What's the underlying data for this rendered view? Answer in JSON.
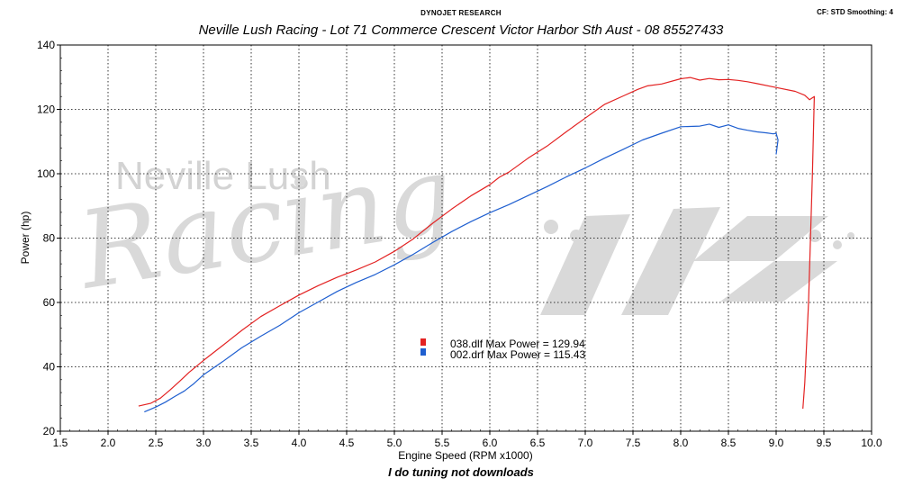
{
  "header": {
    "brand": "DYNOJET RESEARCH",
    "settings": "CF: STD  Smoothing: 4",
    "subtitle": "Neville Lush Racing  - Lot 71 Commerce Crescent  Victor Harbor Sth Aust  - 08 85527433"
  },
  "watermark": {
    "line1": "Neville Lush",
    "line2": "Racing"
  },
  "footer": "I do tuning not downloads",
  "chart_data": {
    "type": "line",
    "xlabel": "Engine Speed (RPM x1000)",
    "ylabel": "Power (hp)",
    "xlim": [
      1.5,
      10.0
    ],
    "ylim": [
      20,
      140
    ],
    "xticks": [
      "1.5",
      "2.0",
      "2.5",
      "3.0",
      "3.5",
      "4.0",
      "4.5",
      "5.0",
      "5.5",
      "6.0",
      "6.5",
      "7.0",
      "7.5",
      "8.0",
      "8.5",
      "9.0",
      "9.5",
      "10.0"
    ],
    "yticks": [
      "20",
      "40",
      "60",
      "80",
      "100",
      "120",
      "140"
    ],
    "grid": true,
    "colors": {
      "red": "#e32222",
      "blue": "#1f5fd0"
    },
    "series": [
      {
        "name": "038.dlf Max Power = 129.94",
        "color": "red",
        "x": [
          2.32,
          2.45,
          2.55,
          2.65,
          2.75,
          2.85,
          3.0,
          3.2,
          3.4,
          3.6,
          3.8,
          4.0,
          4.2,
          4.4,
          4.6,
          4.8,
          5.0,
          5.2,
          5.4,
          5.6,
          5.8,
          6.0,
          6.1,
          6.2,
          6.4,
          6.6,
          6.8,
          7.0,
          7.2,
          7.4,
          7.55,
          7.65,
          7.8,
          8.0,
          8.1,
          8.2,
          8.3,
          8.4,
          8.5,
          8.6,
          8.7,
          8.8,
          9.0,
          9.2,
          9.3,
          9.35,
          9.4,
          9.38,
          9.34,
          9.3,
          9.28
        ],
        "y": [
          27.8,
          28.7,
          30.3,
          32.8,
          35.5,
          38.3,
          42.0,
          46.6,
          51.3,
          55.6,
          59.0,
          62.3,
          65.2,
          67.8,
          70.1,
          72.6,
          75.9,
          79.8,
          84.6,
          89.0,
          93.1,
          96.6,
          98.9,
          100.5,
          104.8,
          108.6,
          113.0,
          117.3,
          121.5,
          124.2,
          126.2,
          127.3,
          127.9,
          129.5,
          129.9,
          129.1,
          129.6,
          129.2,
          129.3,
          129.0,
          128.6,
          128.0,
          126.8,
          125.6,
          124.4,
          123.0,
          124.0,
          100.0,
          60.0,
          35.0,
          27.0
        ]
      },
      {
        "name": "002.drf Max Power = 115.43",
        "color": "blue",
        "x": [
          2.38,
          2.5,
          2.6,
          2.7,
          2.8,
          2.9,
          3.0,
          3.2,
          3.4,
          3.6,
          3.8,
          4.0,
          4.2,
          4.4,
          4.6,
          4.8,
          5.0,
          5.2,
          5.4,
          5.6,
          5.8,
          6.0,
          6.2,
          6.4,
          6.6,
          6.8,
          7.0,
          7.2,
          7.4,
          7.6,
          7.8,
          8.0,
          8.2,
          8.3,
          8.4,
          8.5,
          8.6,
          8.7,
          8.8,
          8.9,
          8.97,
          9.0,
          9.02,
          9.0
        ],
        "y": [
          26.0,
          27.5,
          29.0,
          30.8,
          32.5,
          34.8,
          37.5,
          41.6,
          45.9,
          49.5,
          52.9,
          56.8,
          60.1,
          63.4,
          66.2,
          68.7,
          71.7,
          75.0,
          78.6,
          82.0,
          85.1,
          87.9,
          90.4,
          93.2,
          96.0,
          99.0,
          101.8,
          104.8,
          107.6,
          110.5,
          112.6,
          114.6,
          114.8,
          115.4,
          114.4,
          115.2,
          114.1,
          113.5,
          113.0,
          112.7,
          112.4,
          112.6,
          110.5,
          106.0
        ]
      }
    ]
  }
}
